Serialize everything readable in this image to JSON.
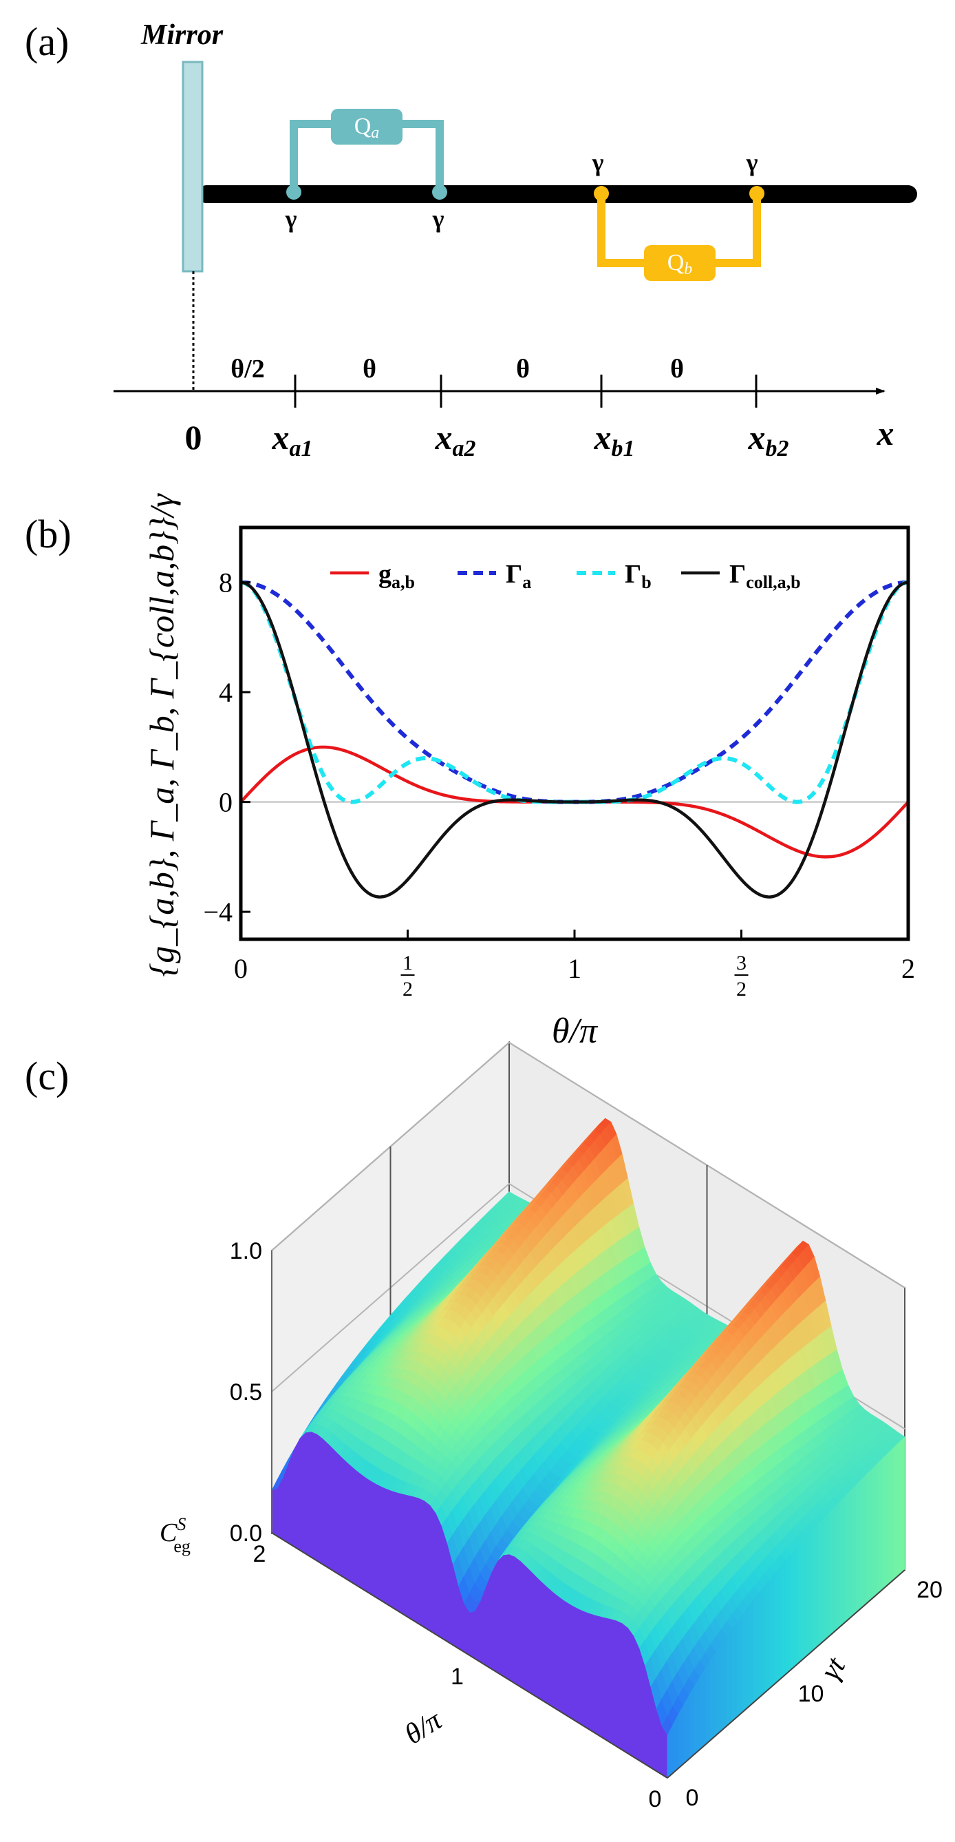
{
  "panel_a": {
    "label": "(a)",
    "mirror_label": "Mirror",
    "qa_label": "Q",
    "qa_sub": "a",
    "qb_label": "Q",
    "qb_sub": "b",
    "gamma": "γ",
    "axis_segments": [
      "θ/2",
      "θ",
      "θ",
      "θ"
    ],
    "axis_origin": "0",
    "positions": [
      {
        "main": "x",
        "sub": "a1"
      },
      {
        "main": "x",
        "sub": "a2"
      },
      {
        "main": "x",
        "sub": "b1"
      },
      {
        "main": "x",
        "sub": "b2"
      }
    ],
    "axis_end": "x",
    "colors": {
      "qa": "#6cbcc1",
      "qb": "#fbbd10",
      "mirror_fill": "#b9dfe3",
      "mirror_stroke": "#7ab8bf"
    }
  },
  "panel_b": {
    "label": "(b)",
    "ylabel": "{g_{a,b}, Γ_a, Γ_b, Γ_{coll,a,b}}/γ",
    "xlabel": "θ/π",
    "chart_data": {
      "type": "line",
      "title": "",
      "xlabel": "θ/π",
      "ylabel": "{g_{a,b}, Γ_a, Γ_b, Γ_{coll,a,b}}/γ",
      "xlim": [
        0,
        2
      ],
      "ylim": [
        -5,
        10
      ],
      "xticks": [
        {
          "value": 0,
          "label": "0"
        },
        {
          "value": 0.5,
          "label": "1/2",
          "num": "1",
          "den": "2"
        },
        {
          "value": 1,
          "label": "1"
        },
        {
          "value": 1.5,
          "label": "3/2",
          "num": "3",
          "den": "2"
        },
        {
          "value": 2,
          "label": "2"
        }
      ],
      "yticks": [
        {
          "value": 8,
          "label": "8"
        },
        {
          "value": 4,
          "label": "4"
        },
        {
          "value": 0,
          "label": "0"
        },
        {
          "value": -4,
          "label": "−4"
        }
      ],
      "legend_position": "top",
      "series": [
        {
          "name": "g_{a,b}",
          "legend_main": "g",
          "legend_sub": "a,b",
          "color": "#e8161a",
          "style": "solid",
          "formula": "g"
        },
        {
          "name": "Γ_a",
          "legend_main": "Γ",
          "legend_sub": "a",
          "color": "#1f2bd6",
          "style": "dashed",
          "formula": "Ga"
        },
        {
          "name": "Γ_b",
          "legend_main": "Γ",
          "legend_sub": "b",
          "color": "#1ee6f2",
          "style": "dashed",
          "formula": "Gb"
        },
        {
          "name": "Γ_coll,a,b",
          "legend_main": "Γ",
          "legend_sub": "coll,a,b",
          "color": "#111111",
          "style": "solid",
          "formula": "Gc"
        }
      ]
    }
  },
  "panel_c": {
    "label": "(c)",
    "zlabel_main": "C",
    "zlabel_sup": "S",
    "zlabel_sub": "eg",
    "xlabel": "θ/π",
    "ylabel": "γt",
    "chart_data": {
      "type": "surface",
      "x_name": "θ/π",
      "y_name": "γt",
      "z_name": "C_eg^S",
      "xlim": [
        0,
        2
      ],
      "ylim": [
        0,
        20
      ],
      "zlim": [
        0,
        1
      ],
      "zticks": [
        "0.0",
        "0.5",
        "1.0"
      ],
      "xticks": [
        "0",
        "1",
        "2"
      ],
      "yticks": [
        "0",
        "10",
        "20"
      ],
      "colormap": "rainbow",
      "peak_theta": [
        0.5,
        1.5
      ],
      "peak_value": 1.0
    }
  }
}
